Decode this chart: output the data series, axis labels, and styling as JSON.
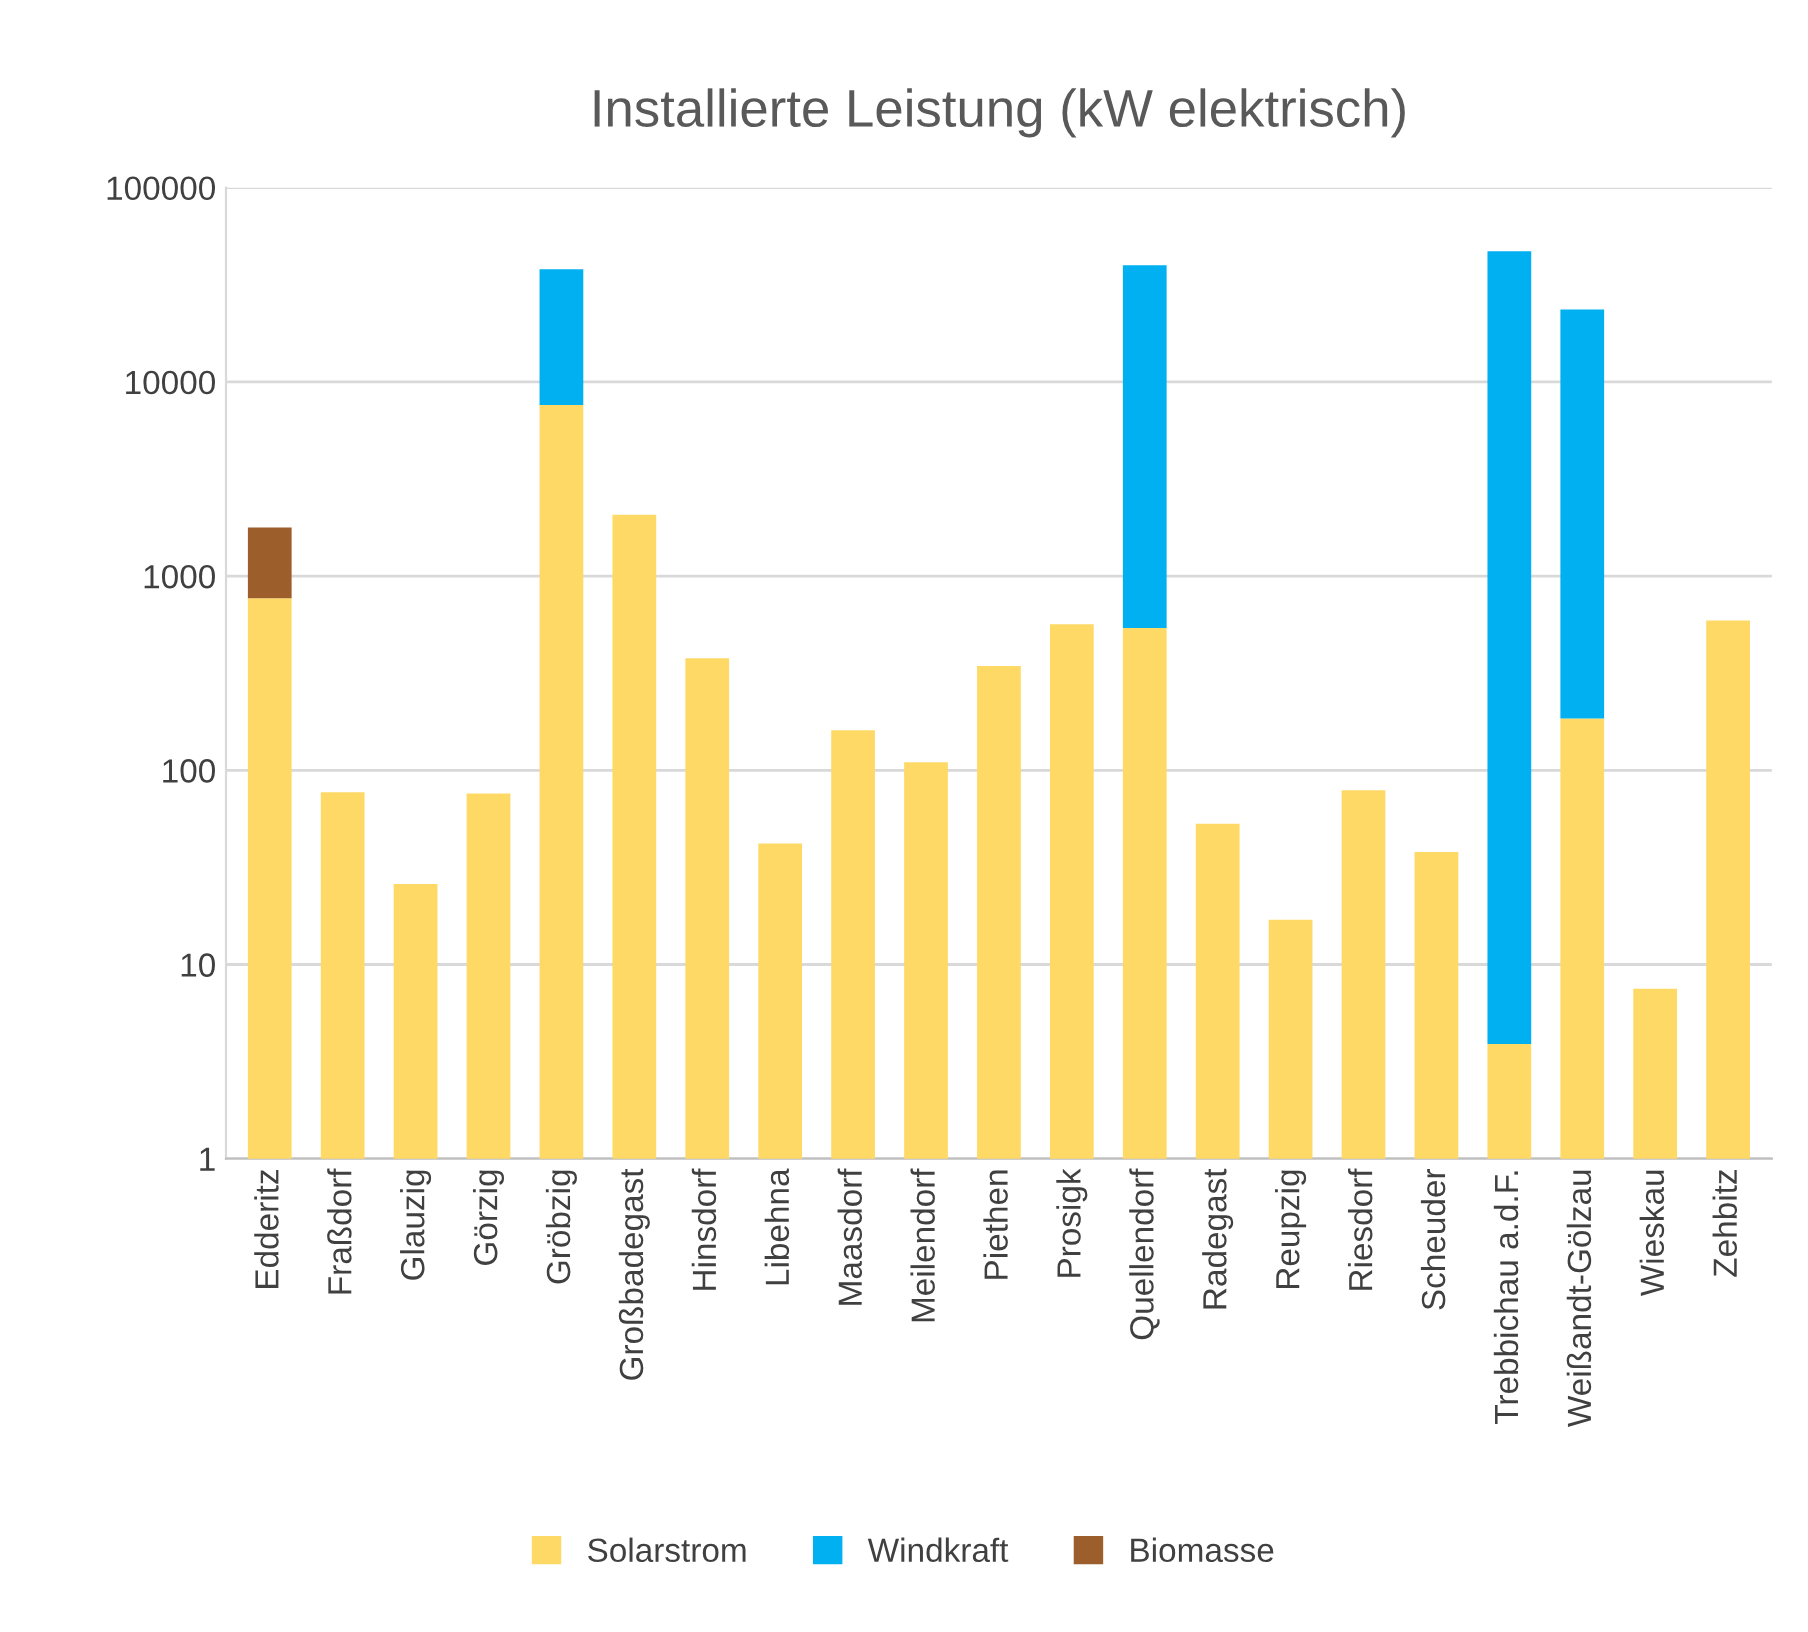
{
  "chart_data": {
    "type": "bar",
    "title": "Installierte Leistung (kW elektrisch)",
    "categories": [
      "Edderitz",
      "Fraßdorf",
      "Glauzig",
      "Görzig",
      "Gröbzig",
      "Großbadegast",
      "Hinsdorf",
      "Libehna",
      "Maasdorf",
      "Meilendorf",
      "Piethen",
      "Prosigk",
      "Quellendorf",
      "Radegast",
      "Reupzig",
      "Riesdorf",
      "Scheuder",
      "Trebbichau a.d.F.",
      "Weißandt-Gölzau",
      "Wieskau",
      "Zehbitz"
    ],
    "series": [
      {
        "name": "Solarstrom",
        "color": "#ffd966",
        "values": [
          770,
          77,
          26,
          76,
          7600,
          2070,
          378,
          42,
          161,
          110,
          344,
          565,
          540,
          53,
          17,
          79,
          38,
          3.9,
          185,
          7.5,
          590
        ]
      },
      {
        "name": "Windkraft",
        "color": "#00b0f0",
        "values": [
          null,
          null,
          null,
          null,
          30400,
          null,
          null,
          null,
          null,
          null,
          null,
          null,
          39300,
          null,
          null,
          null,
          null,
          47000,
          23400,
          null,
          null
        ]
      },
      {
        "name": "Biomasse",
        "color": "#9c5f2b",
        "values": [
          1010,
          null,
          null,
          null,
          null,
          null,
          null,
          null,
          null,
          null,
          null,
          null,
          null,
          null,
          null,
          null,
          null,
          null,
          null,
          null,
          null
        ]
      }
    ],
    "stacked": true,
    "log": "y",
    "ylim": [
      1,
      100000
    ],
    "yticks": [
      1,
      10,
      100,
      1000,
      10000,
      100000
    ],
    "grid": "y",
    "legend": "bottom"
  }
}
